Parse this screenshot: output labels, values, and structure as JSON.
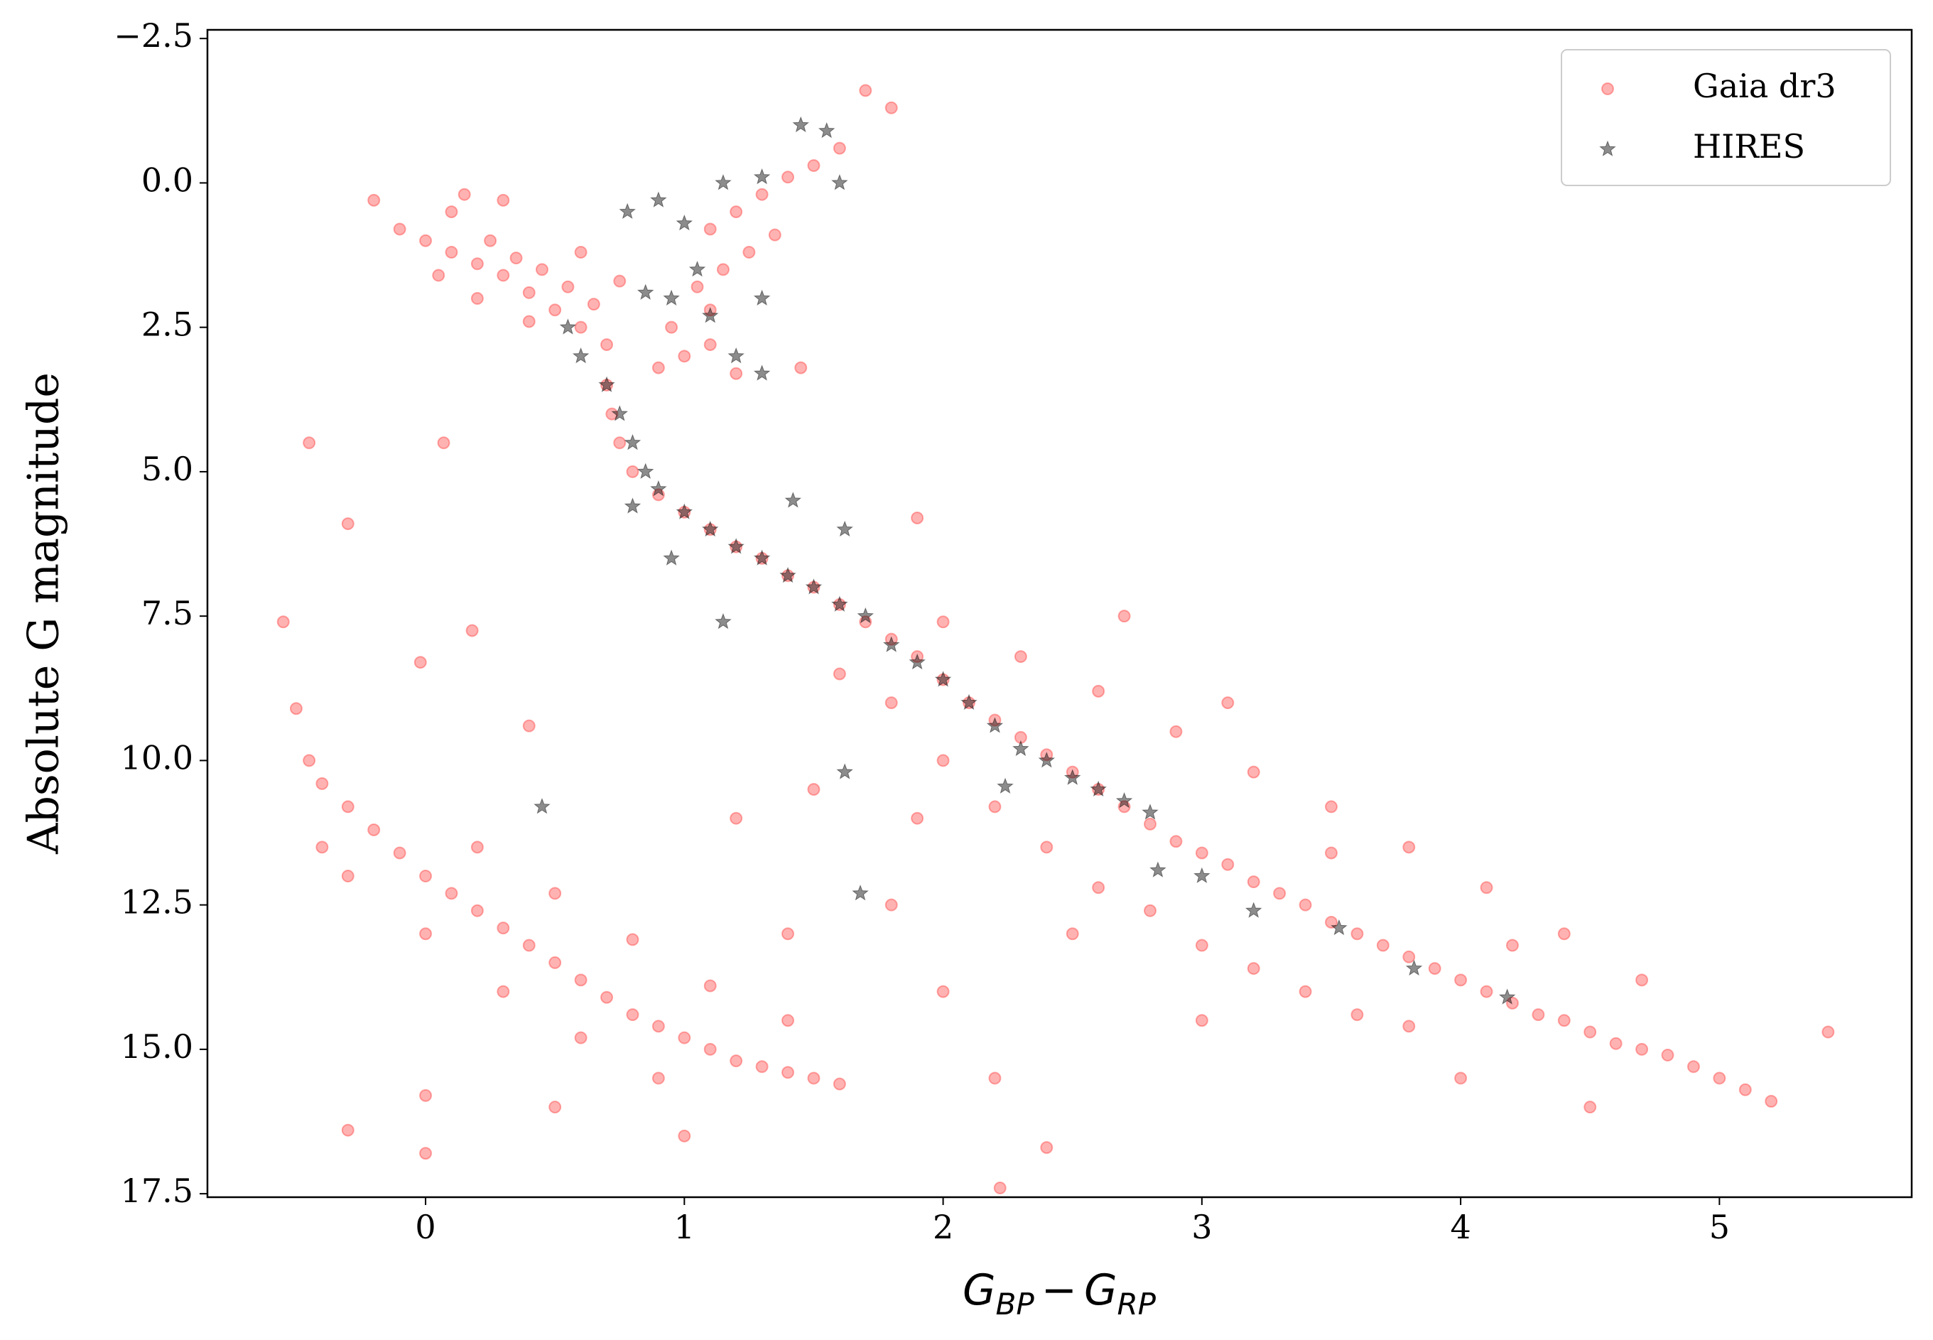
{
  "chart_data": {
    "type": "scatter",
    "xlabel_parts": [
      "G",
      "BP",
      "−",
      "G",
      "RP"
    ],
    "ylabel": "Absolute G magnitude",
    "xlim": [
      -0.843,
      5.743
    ],
    "ylim": [
      17.56,
      -2.65
    ],
    "xticks": [
      0,
      1,
      2,
      3,
      4,
      5
    ],
    "yticks": [
      {
        "value": -2.5,
        "label": "−2.5"
      },
      {
        "value": 0,
        "label": "0.0"
      },
      {
        "value": 2.5,
        "label": "2.5"
      },
      {
        "value": 5,
        "label": "5.0"
      },
      {
        "value": 7.5,
        "label": "7.5"
      },
      {
        "value": 10,
        "label": "10.0"
      },
      {
        "value": 12.5,
        "label": "12.5"
      },
      {
        "value": 15,
        "label": "15.0"
      },
      {
        "value": 17.5,
        "label": "17.5"
      }
    ],
    "legend": "upper right",
    "series": [
      {
        "name": "Gaia dr3",
        "color": "#ff0000",
        "marker": "circle",
        "x": [
          -0.1,
          0,
          0.1,
          0.2,
          0.3,
          0.4,
          0.5,
          0.6,
          0.1,
          0.25,
          0.35,
          0.45,
          0.55,
          0.65,
          0.7,
          0.05,
          0.2,
          0.4,
          -0.2,
          0.3,
          0.6,
          0.75,
          0.15,
          0.9,
          1.0,
          1.1,
          1.2,
          1.1,
          1.15,
          1.1,
          1.2,
          1.3,
          1.4,
          1.5,
          1.6,
          1.7,
          1.8,
          1.25,
          1.05,
          1.35,
          0.95,
          1.45,
          0.7,
          0.72,
          0.75,
          0.8,
          0.9,
          1.0,
          1.1,
          1.2,
          1.3,
          1.4,
          1.5,
          1.6,
          1.7,
          1.8,
          1.9,
          2.0,
          2.1,
          2.2,
          2.3,
          2.4,
          2.5,
          2.6,
          2.7,
          2.8,
          2.9,
          3.0,
          3.1,
          3.2,
          3.3,
          3.4,
          3.5,
          3.6,
          3.7,
          3.8,
          3.9,
          4.0,
          4.1,
          4.2,
          4.3,
          4.4,
          4.5,
          4.6,
          4.7,
          4.8,
          4.9,
          5.0,
          5.1,
          5.2,
          1.8,
          2.0,
          2.2,
          2.4,
          2.6,
          2.8,
          3.0,
          3.2,
          3.4,
          3.6,
          2.3,
          2.6,
          2.9,
          3.2,
          3.5,
          3.8,
          4.1,
          4.4,
          4.7,
          2.0,
          1.6,
          1.9,
          2.5,
          3.0,
          4.0,
          4.5,
          5.42,
          3.5,
          4.2,
          3.8,
          2.7,
          3.1,
          -0.55,
          -0.5,
          -0.45,
          -0.4,
          -0.3,
          -0.2,
          -0.1,
          0.0,
          0.1,
          0.2,
          0.3,
          0.4,
          0.5,
          0.6,
          0.7,
          0.8,
          0.9,
          1.0,
          1.1,
          1.2,
          1.3,
          1.4,
          1.5,
          1.6,
          -0.3,
          0,
          0.3,
          0.6,
          0.9,
          -0.4,
          0.2,
          0.5,
          0.8,
          1.1,
          1.4,
          0,
          0.5,
          1.0,
          0.0,
          -0.3,
          1.5,
          1.8,
          2.0,
          2.2,
          1.2,
          2.4,
          2.22,
          1.4,
          -0.45,
          -0.3,
          0.07,
          0.18,
          -0.02,
          0.4,
          1.9
        ],
        "values": [
          0.8,
          1.0,
          1.2,
          1.4,
          1.6,
          1.9,
          2.2,
          2.5,
          0.5,
          1.0,
          1.3,
          1.5,
          1.8,
          2.1,
          2.8,
          1.6,
          2.0,
          2.4,
          0.3,
          0.3,
          1.2,
          1.7,
          0.2,
          3.2,
          3.0,
          2.8,
          3.3,
          2.2,
          1.5,
          0.8,
          0.5,
          0.2,
          -0.1,
          -0.3,
          -0.6,
          -1.6,
          -1.3,
          1.2,
          1.8,
          0.9,
          2.5,
          3.2,
          3.5,
          4.0,
          4.5,
          5.0,
          5.4,
          5.7,
          6.0,
          6.3,
          6.5,
          6.8,
          7.0,
          7.3,
          7.6,
          7.9,
          8.2,
          8.6,
          9.0,
          9.3,
          9.6,
          9.9,
          10.2,
          10.5,
          10.8,
          11.1,
          11.4,
          11.6,
          11.8,
          12.1,
          12.3,
          12.5,
          12.8,
          13.0,
          13.2,
          13.4,
          13.6,
          13.8,
          14.0,
          14.2,
          14.4,
          14.5,
          14.7,
          14.9,
          15.0,
          15.1,
          15.3,
          15.5,
          15.7,
          15.9,
          9.0,
          10.0,
          10.8,
          11.5,
          12.2,
          12.6,
          13.2,
          13.6,
          14.0,
          14.4,
          8.2,
          8.8,
          9.5,
          10.2,
          10.8,
          11.5,
          12.2,
          13.0,
          13.8,
          7.6,
          8.5,
          11.0,
          13.0,
          14.5,
          15.5,
          16.0,
          14.7,
          11.6,
          13.2,
          14.6,
          7.5,
          9.0,
          7.6,
          9.1,
          10.0,
          10.4,
          10.8,
          11.2,
          11.6,
          12.0,
          12.3,
          12.6,
          12.9,
          13.2,
          13.5,
          13.8,
          14.1,
          14.4,
          14.6,
          14.8,
          15.0,
          15.2,
          15.3,
          15.4,
          15.5,
          15.6,
          12.0,
          13.0,
          14.0,
          14.8,
          15.5,
          11.5,
          11.5,
          12.3,
          13.1,
          13.9,
          14.5,
          15.8,
          16.0,
          16.5,
          16.8,
          16.4,
          10.5,
          12.5,
          14.0,
          15.5,
          11.0,
          16.7,
          17.4,
          13.0,
          4.5,
          5.9,
          4.5,
          7.75,
          8.3,
          9.4,
          5.8
        ]
      },
      {
        "name": "HIRES",
        "color": "#000000",
        "marker": "star",
        "x": [
          0.55,
          0.6,
          0.7,
          0.75,
          0.8,
          0.85,
          0.9,
          1.0,
          1.1,
          1.2,
          1.3,
          1.4,
          1.5,
          1.6,
          1.7,
          1.8,
          1.9,
          2.0,
          2.1,
          2.2,
          2.3,
          2.4,
          2.5,
          2.6,
          2.7,
          2.8,
          2.24,
          2.83,
          3.0,
          3.2,
          3.53,
          3.82,
          4.18,
          0.78,
          0.9,
          1.0,
          1.15,
          1.3,
          1.45,
          1.55,
          1.6,
          0.85,
          0.95,
          1.05,
          1.1,
          1.3,
          1.2,
          1.3,
          0.45,
          1.68,
          1.62,
          1.15,
          1.42,
          1.62,
          0.8,
          0.95
        ],
        "values": [
          2.5,
          3.0,
          3.5,
          4.0,
          4.5,
          5.0,
          5.3,
          5.7,
          6.0,
          6.3,
          6.5,
          6.8,
          7.0,
          7.3,
          7.5,
          8.0,
          8.3,
          8.6,
          9.0,
          9.4,
          9.8,
          10.0,
          10.3,
          10.5,
          10.7,
          10.9,
          10.45,
          11.9,
          12.0,
          12.6,
          12.9,
          13.6,
          14.1,
          0.5,
          0.3,
          0.7,
          0.0,
          -0.1,
          -1.0,
          -0.9,
          0.0,
          1.9,
          2.0,
          1.5,
          2.3,
          2.0,
          3.0,
          3.3,
          10.8,
          12.3,
          10.2,
          7.6,
          5.5,
          6.0,
          5.6,
          6.5
        ]
      }
    ]
  }
}
